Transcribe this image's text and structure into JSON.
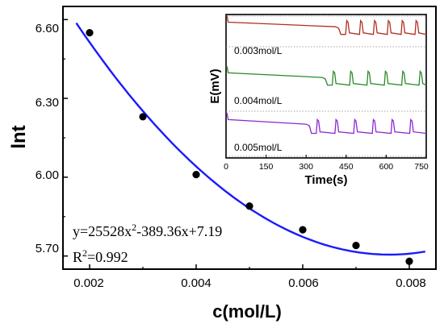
{
  "chart_data": [
    {
      "type": "scatter",
      "xlabel": "c(mol/L)",
      "ylabel": "lnt",
      "xlim": [
        0.0015,
        0.0085
      ],
      "ylim": [
        5.65,
        6.65
      ],
      "xticks": [
        "0.002",
        "0.004",
        "0.006",
        "0.008"
      ],
      "yticks": [
        "5.70",
        "6.00",
        "6.30",
        "6.60"
      ],
      "series": [
        {
          "x": [
            0.002,
            0.003,
            0.004,
            0.005,
            0.006,
            0.007,
            0.008
          ],
          "y": [
            6.55,
            6.23,
            6.01,
            5.89,
            5.8,
            5.74,
            5.68
          ],
          "color": "#000000"
        }
      ],
      "fit": {
        "coefficients": [
          25528,
          -389.36,
          7.19
        ],
        "x_range": [
          0.00175,
          0.0083
        ],
        "color": "#1a1aff",
        "equation": {
          "lhs": "y=25528x",
          "sup": "2",
          "rhs": "-389.36x+7.19"
        },
        "r2": {
          "lhs": "R",
          "sup": "2",
          "rhs": "=0.992"
        }
      }
    },
    {
      "type": "line",
      "xlabel": "Time(s)",
      "ylabel": "E(mV)",
      "xlim": [
        0,
        750
      ],
      "xticks": [
        "0",
        "150",
        "300",
        "450",
        "600",
        "750"
      ],
      "series": [
        {
          "name": "0.003mol/L",
          "color": "#b03020",
          "start": 15,
          "end": 7,
          "spike_start": 430,
          "period": 52,
          "spike_top": 16
        },
        {
          "name": "0.004mol/L",
          "color": "#2a8a2a",
          "start": 14,
          "end": 6,
          "spike_start": 380,
          "period": 65,
          "spike_top": 15
        },
        {
          "name": "0.005mol/L",
          "color": "#8a2ad0",
          "start": 14,
          "end": 5,
          "spike_start": 320,
          "period": 70,
          "spike_top": 14
        }
      ]
    }
  ]
}
